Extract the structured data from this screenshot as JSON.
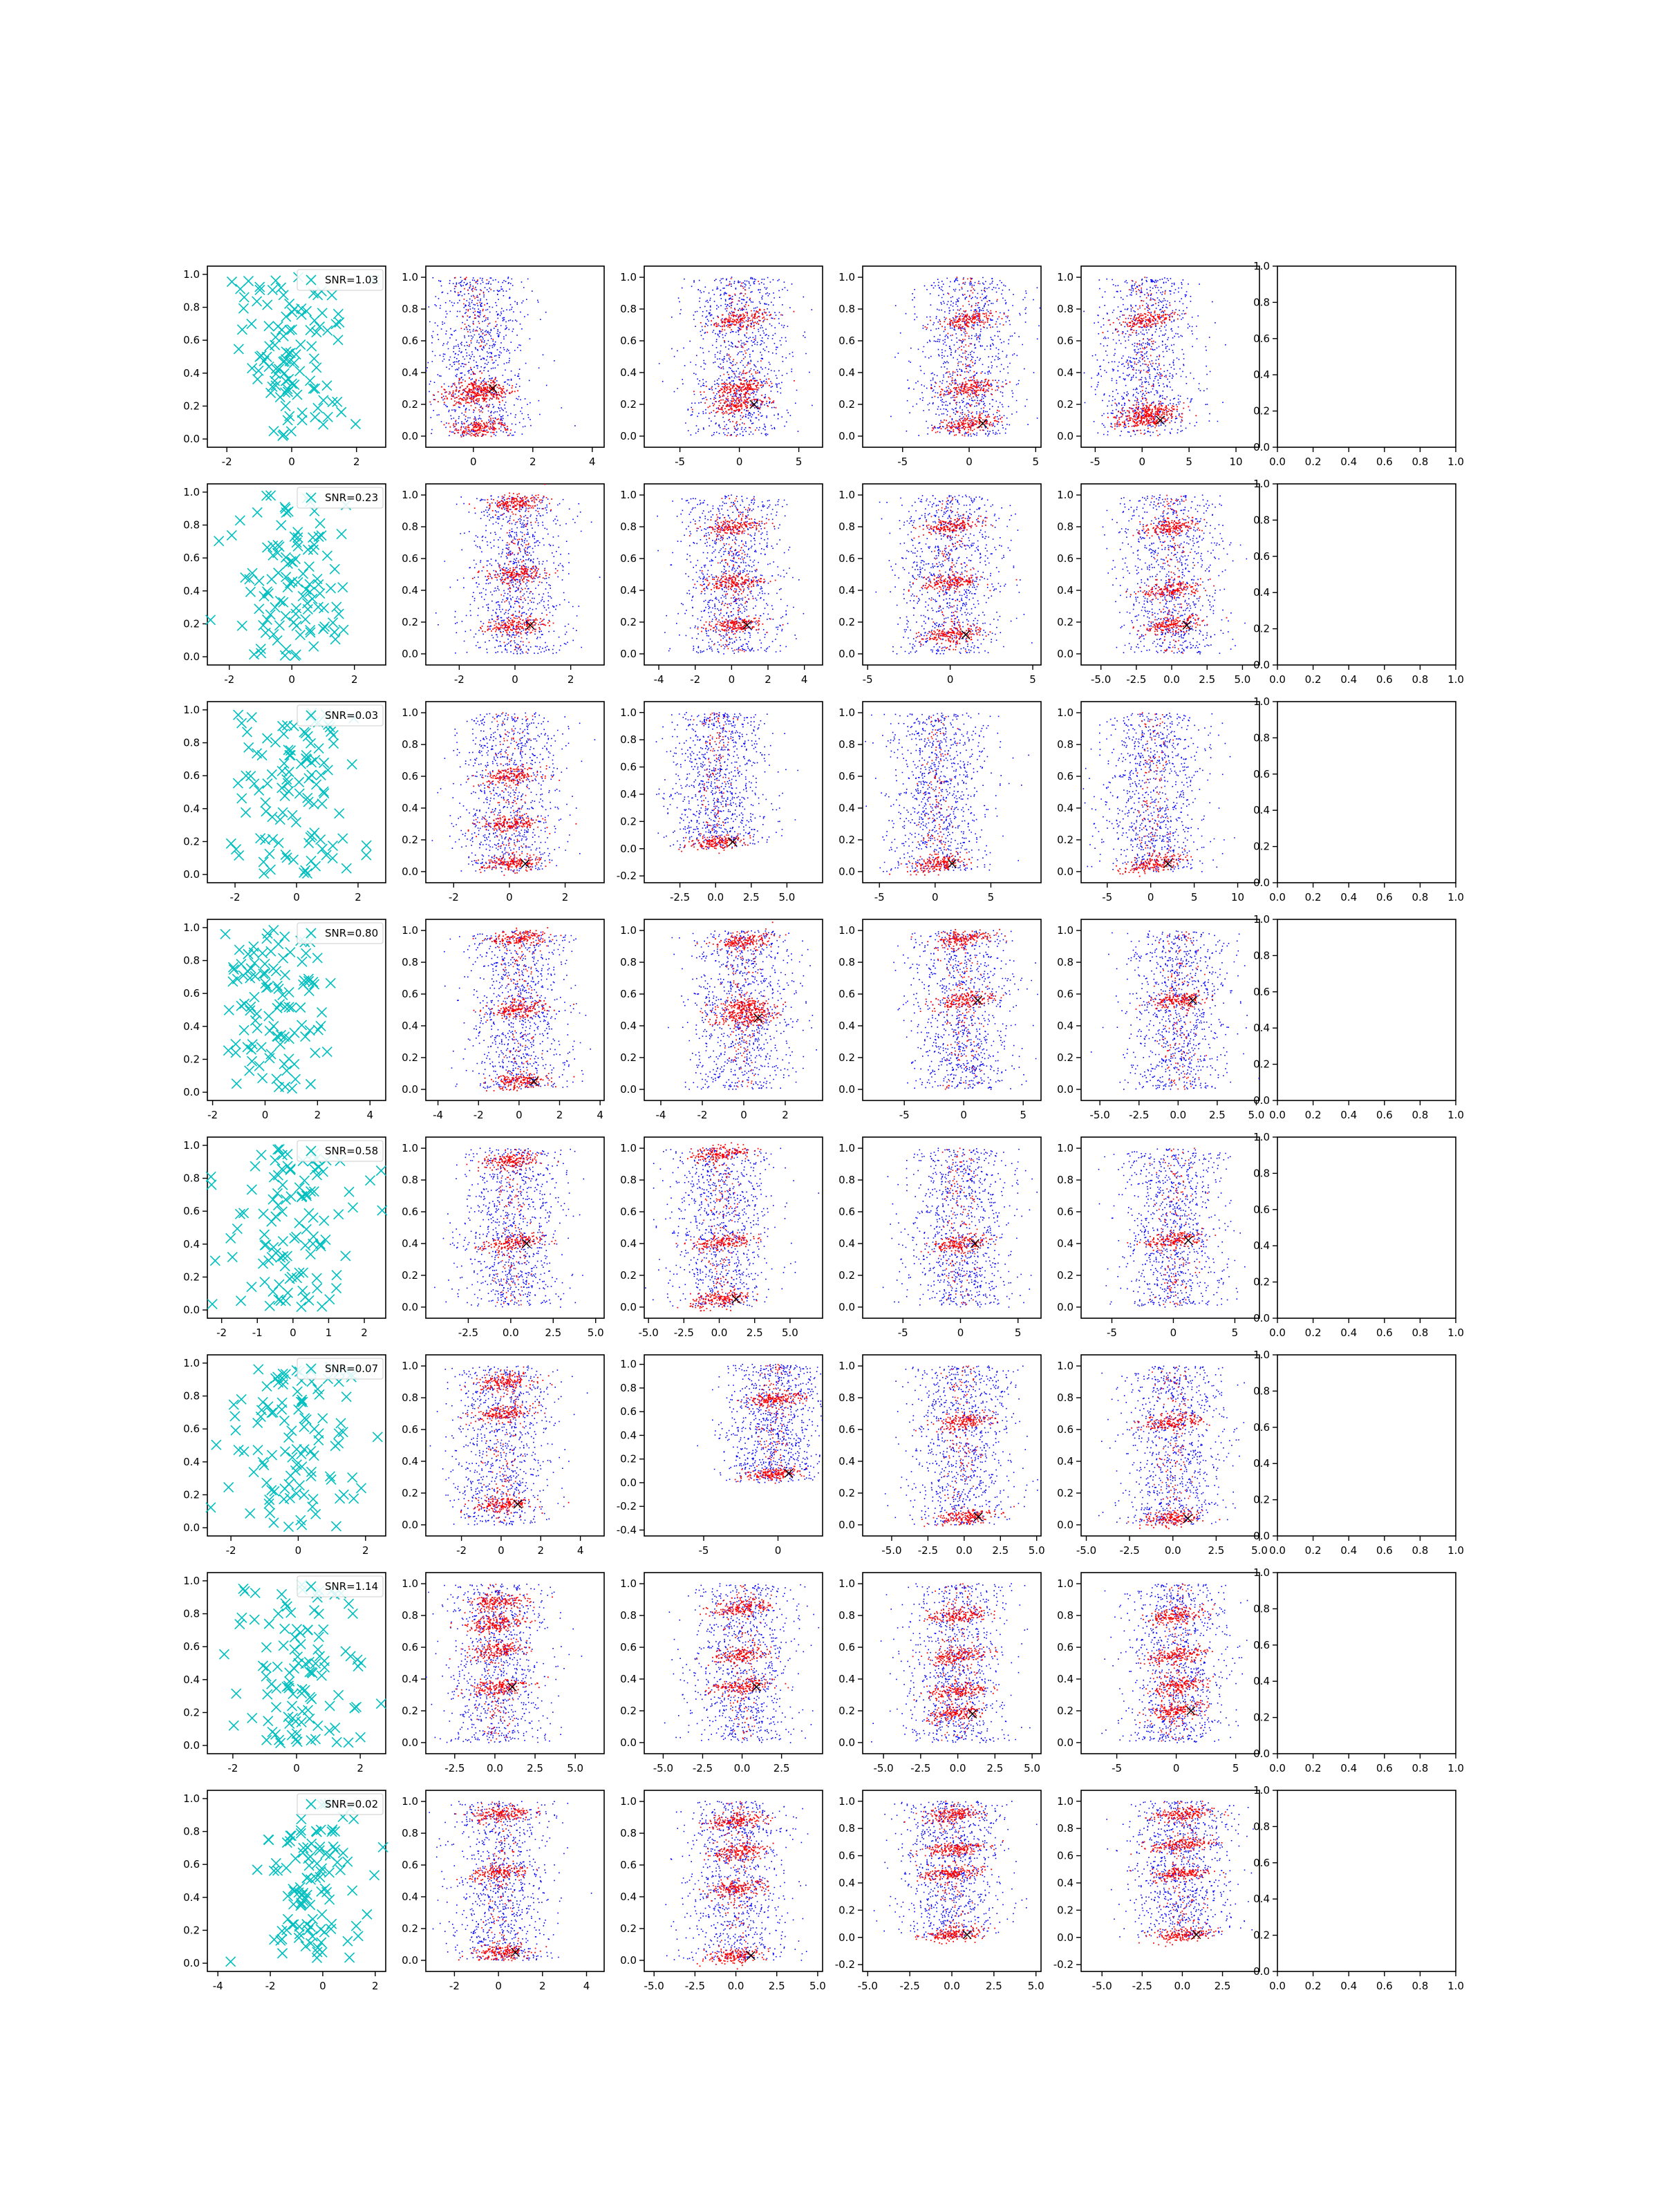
{
  "figure": {
    "rows": 8,
    "cols": 6
  },
  "colors": {
    "scatter_x": "#00bfbf",
    "points_blue": "#0000ff",
    "points_red": "#ff0000",
    "marker_black": "#000000",
    "axes": "#000000"
  },
  "chart_data": [
    {
      "type": "scatter",
      "row": 1,
      "legend": "SNR=1.03",
      "xlim": [
        -2.6,
        2.9
      ],
      "ylim": [
        -0.05,
        1.05
      ],
      "xticks": [
        "-2",
        "0",
        "2"
      ],
      "yticks": [
        "0.0",
        "0.2",
        "0.4",
        "0.6",
        "0.8",
        "1.0"
      ],
      "xlim_blue": [
        -1.6,
        4.4
      ],
      "xlim_c3": [
        -8,
        7
      ],
      "xlim_c4": [
        -8,
        5.4
      ],
      "xlim_c5": [
        -6.5,
        12.5
      ],
      "xticks_c2": [
        "-2",
        "0",
        "2",
        "4"
      ],
      "xticks_c3": [
        "-5",
        "0",
        "5"
      ],
      "xticks_c4": [
        "-5",
        "0",
        "5"
      ],
      "xticks_c5": [
        "-5",
        "0",
        "5",
        "10"
      ],
      "red_bands_c2": [
        0.05,
        0.25,
        0.3
      ],
      "red_bands_c3": [
        0.73,
        0.3,
        0.2
      ],
      "red_bands_c4": [
        0.73,
        0.3,
        0.08
      ],
      "red_bands_c5": [
        0.73,
        0.15,
        0.1
      ]
    },
    {
      "type": "scatter",
      "row": 2,
      "legend": "SNR=0.23",
      "xlim": [
        -2.7,
        3.0
      ],
      "ylim": [
        -0.05,
        1.05
      ],
      "xticks": [
        "-2",
        "0",
        "2"
      ],
      "yticks": [
        "0.0",
        "0.2",
        "0.4",
        "0.6",
        "0.8",
        "1.0"
      ],
      "xlim_c2": [
        -3.2,
        3.2
      ],
      "xlim_c3": [
        -4.8,
        5
      ],
      "xlim_c4": [
        -5.3,
        5.5
      ],
      "xlim_c5": [
        -6.4,
        6.2
      ],
      "xticks_c2": [
        "-2",
        "0",
        "2"
      ],
      "xticks_c3": [
        "-4",
        "-2",
        "0",
        "2",
        "4"
      ],
      "xticks_c4": [
        "-5",
        "0",
        "5"
      ],
      "xticks_c5": [
        "-5.0",
        "-2.5",
        "0.0",
        "2.5",
        "5.0"
      ],
      "red_bands_c2": [
        0.95,
        0.5,
        0.18
      ],
      "red_bands_c3": [
        0.8,
        0.45,
        0.18
      ],
      "red_bands_c4": [
        0.8,
        0.45,
        0.12
      ],
      "red_bands_c5": [
        0.8,
        0.4,
        0.18
      ]
    },
    {
      "type": "scatter",
      "row": 3,
      "legend": "SNR=0.03",
      "xlim": [
        -2.9,
        2.9
      ],
      "ylim": [
        -0.05,
        1.05
      ],
      "xticks": [
        "-2",
        "0",
        "2"
      ],
      "yticks": [
        "0.0",
        "0.2",
        "0.4",
        "0.6",
        "0.8",
        "1.0"
      ],
      "xlim_c2": [
        -3.0,
        3.4
      ],
      "xlim_c3": [
        -5,
        7.5
      ],
      "xlim_c4": [
        -6.5,
        9.5
      ],
      "xlim_c5": [
        -8,
        12.5
      ],
      "xticks_c2": [
        "-2",
        "0",
        "2"
      ],
      "xticks_c3": [
        "-2.5",
        "0.0",
        "2.5",
        "5.0"
      ],
      "xticks_c4": [
        "-5",
        "0",
        "5"
      ],
      "xticks_c5": [
        "-5",
        "0",
        "5",
        "10"
      ],
      "yticks_c3": [
        "-0.2",
        "0.0",
        "0.2",
        "0.4",
        "0.6",
        "0.8",
        "1.0"
      ],
      "red_bands_c2": [
        0.6,
        0.3,
        0.05
      ],
      "red_bands_c3": [
        0.05
      ],
      "red_bands_c4": [
        0.05
      ],
      "red_bands_c5": [
        0.05
      ]
    },
    {
      "type": "scatter",
      "row": 4,
      "legend": "SNR=0.80",
      "xlim": [
        -2.2,
        4.6
      ],
      "ylim": [
        -0.05,
        1.05
      ],
      "xticks": [
        "-2",
        "0",
        "2",
        "4"
      ],
      "yticks": [
        "0.0",
        "0.2",
        "0.4",
        "0.6",
        "0.8",
        "1.0"
      ],
      "xlim_c2": [
        -4.6,
        4.2
      ],
      "xlim_c3": [
        -4.8,
        3.8
      ],
      "xlim_c4": [
        -8.5,
        6.5
      ],
      "xlim_c5": [
        -6.2,
        5.2
      ],
      "xticks_c2": [
        "-4",
        "-2",
        "0",
        "2",
        "4"
      ],
      "xticks_c3": [
        "-4",
        "-2",
        "0",
        "2"
      ],
      "xticks_c4": [
        "-5",
        "0",
        "5"
      ],
      "xticks_c5": [
        "-5.0",
        "-2.5",
        "0.0",
        "2.5",
        "5.0"
      ],
      "red_bands_c2": [
        0.95,
        0.5,
        0.05
      ],
      "red_bands_c3": [
        0.93,
        0.52,
        0.45
      ],
      "red_bands_c4": [
        0.95,
        0.56
      ],
      "red_bands_c5": [
        0.56
      ]
    },
    {
      "type": "scatter",
      "row": 5,
      "legend": "SNR=0.58",
      "xlim": [
        -2.4,
        2.6
      ],
      "ylim": [
        -0.05,
        1.05
      ],
      "xticks": [
        "-2",
        "-1",
        "0",
        "1",
        "2"
      ],
      "yticks": [
        "0.0",
        "0.2",
        "0.4",
        "0.6",
        "0.8",
        "1.0"
      ],
      "xlim_c2": [
        -5,
        5.5
      ],
      "xlim_c3": [
        -5.3,
        7.3
      ],
      "xlim_c4": [
        -8.5,
        7
      ],
      "xlim_c5": [
        -7.5,
        7
      ],
      "xticks_c2": [
        "-2.5",
        "0.0",
        "2.5",
        "5.0"
      ],
      "xticks_c3": [
        "-5.0",
        "-2.5",
        "0.0",
        "2.5",
        "5.0"
      ],
      "xticks_c4": [
        "-5",
        "0",
        "5"
      ],
      "xticks_c5": [
        "-5",
        "0",
        "5"
      ],
      "red_bands_c2": [
        0.92,
        0.4
      ],
      "red_bands_c3": [
        0.97,
        0.41,
        0.05
      ],
      "red_bands_c4": [
        0.4
      ],
      "red_bands_c5": [
        0.42
      ]
    },
    {
      "type": "scatter",
      "row": 6,
      "legend": "SNR=0.07",
      "xlim": [
        -2.7,
        2.6
      ],
      "ylim": [
        -0.05,
        1.05
      ],
      "xticks": [
        "-2",
        "0",
        "2"
      ],
      "yticks": [
        "0.0",
        "0.2",
        "0.4",
        "0.6",
        "0.8",
        "1.0"
      ],
      "xlim_c2": [
        -3.8,
        5.2
      ],
      "xlim_c3": [
        -9,
        3
      ],
      "xlim_c4": [
        -7,
        5.3
      ],
      "xlim_c5": [
        -5.3,
        5
      ],
      "xticks_c2": [
        "-2",
        "0",
        "2",
        "4"
      ],
      "xticks_c3": [
        "-5",
        "0"
      ],
      "xticks_c4": [
        "-5.0",
        "-2.5",
        "0.0",
        "2.5",
        "5.0"
      ],
      "xticks_c5": [
        "-5.0",
        "-2.5",
        "0.0",
        "2.5",
        "5.0"
      ],
      "yticks_c3": [
        "-0.4",
        "-0.2",
        "0.0",
        "0.2",
        "0.4",
        "0.6",
        "0.8",
        "1.0"
      ],
      "red_bands_c2": [
        0.9,
        0.7,
        0.13
      ],
      "red_bands_c3": [
        0.7,
        0.08
      ],
      "red_bands_c4": [
        0.65,
        0.05
      ],
      "red_bands_c5": [
        0.65,
        0.04
      ]
    },
    {
      "type": "scatter",
      "row": 7,
      "legend": "SNR=1.14",
      "xlim": [
        -2.8,
        2.8
      ],
      "ylim": [
        -0.05,
        1.05
      ],
      "xticks": [
        "-2",
        "0",
        "2"
      ],
      "yticks": [
        "0.0",
        "0.2",
        "0.4",
        "0.6",
        "0.8",
        "1.0"
      ],
      "xlim_c2": [
        -4.3,
        6.8
      ],
      "xlim_c3": [
        -6.2,
        5.1
      ],
      "xlim_c4": [
        -6.4,
        5.6
      ],
      "xlim_c5": [
        -8,
        7
      ],
      "xticks_c2": [
        "-2.5",
        "0.0",
        "2.5",
        "5.0"
      ],
      "xticks_c3": [
        "-5.0",
        "-2.5",
        "0.0",
        "2.5"
      ],
      "xticks_c4": [
        "-5.0",
        "-2.5",
        "0.0",
        "2.5",
        "5.0"
      ],
      "xticks_c5": [
        "-5",
        "0",
        "5"
      ],
      "red_bands_c2": [
        0.88,
        0.75,
        0.58,
        0.35
      ],
      "red_bands_c3": [
        0.85,
        0.55,
        0.35
      ],
      "red_bands_c4": [
        0.8,
        0.55,
        0.32,
        0.18
      ],
      "red_bands_c5": [
        0.8,
        0.55,
        0.35,
        0.2
      ]
    },
    {
      "type": "scatter",
      "row": 8,
      "legend": "SNR=0.02",
      "xlim": [
        -4.4,
        2.4
      ],
      "ylim": [
        -0.05,
        1.05
      ],
      "xticks": [
        "-4",
        "-2",
        "0",
        "2"
      ],
      "yticks": [
        "0.0",
        "0.2",
        "0.4",
        "0.6",
        "0.8",
        "1.0"
      ],
      "xlim_c2": [
        -3.3,
        4.8
      ],
      "xlim_c3": [
        -5.6,
        5.3
      ],
      "xlim_c4": [
        -5.3,
        5.3
      ],
      "xlim_c5": [
        -6.3,
        4.8
      ],
      "xticks_c2": [
        "-2",
        "0",
        "2",
        "4"
      ],
      "xticks_c3": [
        "-5.0",
        "-2.5",
        "0.0",
        "2.5",
        "5.0"
      ],
      "xticks_c4": [
        "-5.0",
        "-2.5",
        "0.0",
        "2.5",
        "5.0"
      ],
      "xticks_c5": [
        "-5.0",
        "-2.5",
        "0.0",
        "2.5"
      ],
      "yticks_c4": [
        "-0.2",
        "0.0",
        "0.2",
        "0.4",
        "0.6",
        "0.8",
        "1.0"
      ],
      "yticks_c5": [
        "-0.2",
        "0.0",
        "0.2",
        "0.4",
        "0.6",
        "0.8",
        "1.0"
      ],
      "red_bands_c2": [
        0.92,
        0.55,
        0.05
      ],
      "red_bands_c3": [
        0.88,
        0.68,
        0.45,
        0.03
      ],
      "red_bands_c4": [
        0.9,
        0.65,
        0.47,
        0.02
      ],
      "red_bands_c5": [
        0.9,
        0.68,
        0.47,
        0.02
      ]
    }
  ],
  "empty_axes": {
    "xticks": [
      "0.0",
      "0.2",
      "0.4",
      "0.6",
      "0.8",
      "1.0"
    ],
    "yticks": [
      "0.0",
      "0.2",
      "0.4",
      "0.6",
      "0.8",
      "1.0"
    ]
  }
}
